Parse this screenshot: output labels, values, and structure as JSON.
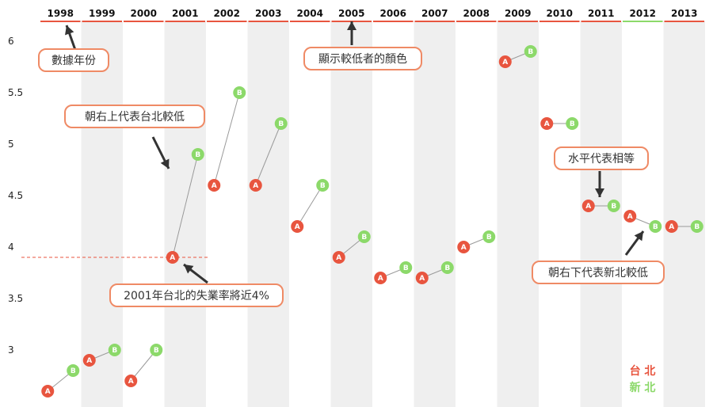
{
  "colors": {
    "taipei": "#e8553f",
    "newtaipei": "#8cd96a",
    "pair_line": "#9a9a9a",
    "band": "#efefef",
    "ref_line": "#e8553f",
    "arrow": "#333333",
    "callout_border": "#ef8a65"
  },
  "legend": {
    "taipei": "台 北",
    "newtaipei": "新 北"
  },
  "annotations": [
    {
      "id": "ann-year-order",
      "text": "數據年份"
    },
    {
      "id": "ann-lower-color",
      "text": "顯示較低者的顏色"
    },
    {
      "id": "ann-up-right",
      "text": "朝右上代表台北較低"
    },
    {
      "id": "ann-2001",
      "text": "2001年台北的失業率將近4%"
    },
    {
      "id": "ann-equal",
      "text": "水平代表相等"
    },
    {
      "id": "ann-down-right",
      "text": "朝右下代表新北較低"
    }
  ],
  "chart_data": {
    "type": "scatter",
    "title": "",
    "xlabel": "",
    "ylabel": "",
    "ylim": [
      2.6,
      6.25
    ],
    "yticks": [
      3,
      3.5,
      4,
      4.5,
      5,
      5.5,
      6
    ],
    "ytick_labels": [
      "3",
      "3.5",
      "4",
      "4.5",
      "5",
      "5.5",
      "6"
    ],
    "categories": [
      "1998",
      "1999",
      "2000",
      "2001",
      "2002",
      "2003",
      "2004",
      "2005",
      "2006",
      "2007",
      "2008",
      "2009",
      "2010",
      "2011",
      "2012",
      "2013"
    ],
    "point_labels": {
      "taipei": "A",
      "newtaipei": "B"
    },
    "series": [
      {
        "name": "台北",
        "key": "taipei",
        "values": [
          2.6,
          2.9,
          2.7,
          3.9,
          4.6,
          4.6,
          4.2,
          3.9,
          3.7,
          3.7,
          4.0,
          5.8,
          5.2,
          4.4,
          4.3,
          4.2
        ]
      },
      {
        "name": "新北",
        "key": "newtaipei",
        "values": [
          2.8,
          3.0,
          3.0,
          4.9,
          5.5,
          5.2,
          4.6,
          4.1,
          3.8,
          3.8,
          4.1,
          5.9,
          5.2,
          4.4,
          4.2,
          4.2
        ]
      }
    ],
    "lower_color": [
      "taipei",
      "taipei",
      "taipei",
      "taipei",
      "taipei",
      "taipei",
      "taipei",
      "taipei",
      "taipei",
      "taipei",
      "taipei",
      "taipei",
      "taipei",
      "taipei",
      "newtaipei",
      "taipei"
    ],
    "reference_line": {
      "value": 3.9,
      "from": "1998",
      "to": "2001"
    }
  }
}
